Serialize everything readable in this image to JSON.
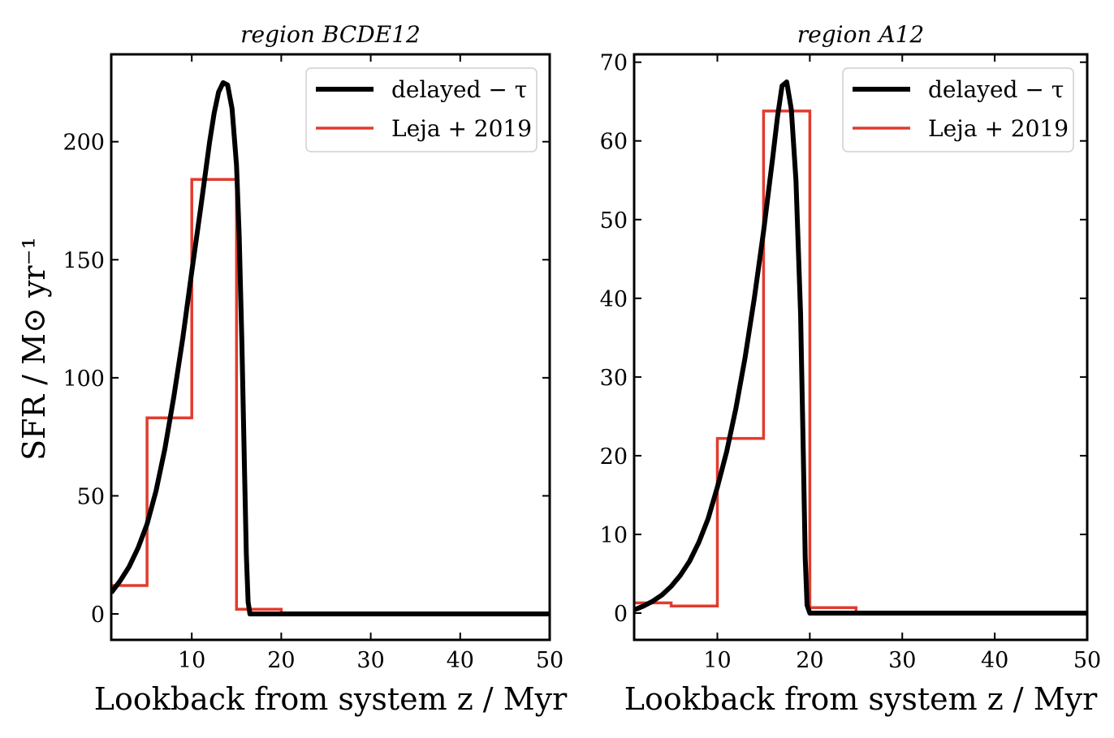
{
  "figure": {
    "ylabel": "SFR / M⊙ yr⁻¹"
  },
  "chart_data": [
    {
      "type": "line",
      "title": "region BCDE12",
      "xlabel": "Lookback from system z / Myr",
      "ylabel": "SFR / M⊙ yr⁻¹",
      "xlim": [
        1,
        50
      ],
      "ylim": [
        -11,
        237
      ],
      "xticks": [
        10,
        20,
        30,
        40,
        50
      ],
      "yticks": [
        0,
        50,
        100,
        150,
        200
      ],
      "legend_position": "top-right",
      "series": [
        {
          "name": "delayed − τ",
          "kind": "line",
          "color": "#000000",
          "x": [
            1,
            2,
            3,
            4,
            5,
            6,
            7,
            8,
            9,
            10,
            11,
            12,
            12.5,
            13,
            13.5,
            14,
            14.5,
            15,
            15.3,
            15.6,
            15.9,
            16.1,
            16.3,
            16.5,
            17,
            20,
            30,
            40,
            50
          ],
          "y": [
            9,
            14,
            20,
            28,
            38,
            52,
            70,
            92,
            117,
            145,
            172,
            200,
            212,
            221,
            225,
            224,
            214,
            190,
            160,
            115,
            60,
            25,
            5,
            0,
            0,
            0,
            0,
            0,
            0
          ]
        },
        {
          "name": "Leja + 2019",
          "kind": "step",
          "color": "#e23b2e",
          "x": [
            1,
            5,
            5,
            10,
            10,
            15,
            15,
            20,
            20,
            50
          ],
          "y": [
            12,
            12,
            83,
            83,
            184,
            184,
            2,
            2,
            0,
            0
          ]
        }
      ]
    },
    {
      "type": "line",
      "title": "region A12",
      "xlabel": "Lookback from system z / Myr",
      "ylabel": "",
      "xlim": [
        1,
        50
      ],
      "ylim": [
        -3.4,
        71
      ],
      "xticks": [
        10,
        20,
        30,
        40,
        50
      ],
      "yticks": [
        0,
        10,
        20,
        30,
        40,
        50,
        60,
        70
      ],
      "legend_position": "top-right",
      "series": [
        {
          "name": "delayed − τ",
          "kind": "line",
          "color": "#000000",
          "x": [
            1,
            2,
            3,
            4,
            5,
            6,
            7,
            8,
            9,
            10,
            11,
            12,
            13,
            14,
            15,
            16,
            16.5,
            17,
            17.5,
            18,
            18.5,
            19,
            19.3,
            19.5,
            19.7,
            20,
            25,
            30,
            40,
            50
          ],
          "y": [
            0.4,
            0.9,
            1.5,
            2.3,
            3.4,
            4.8,
            6.6,
            9,
            12,
            16,
            20.5,
            26,
            32.5,
            40,
            48.5,
            58,
            63,
            67,
            67.5,
            64,
            55,
            38,
            20,
            7,
            1,
            0,
            0,
            0,
            0,
            0
          ]
        },
        {
          "name": "Leja + 2019",
          "kind": "step",
          "color": "#e23b2e",
          "x": [
            1,
            5,
            5,
            10,
            10,
            15,
            15,
            20,
            20,
            25,
            25,
            50
          ],
          "y": [
            1.3,
            1.3,
            0.9,
            0.9,
            22.2,
            22.2,
            63.8,
            63.8,
            0.7,
            0.7,
            0,
            0
          ]
        }
      ]
    }
  ]
}
